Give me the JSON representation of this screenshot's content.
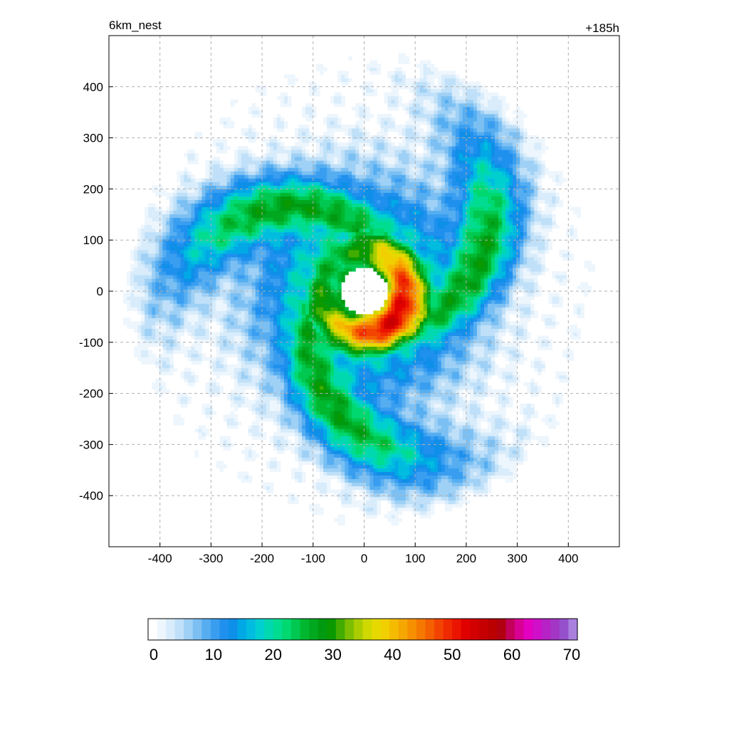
{
  "chart_data": {
    "type": "heatmap",
    "title_left": "6km_nest",
    "title_right": "+185h",
    "xlabel": "",
    "ylabel": "",
    "x_range": [
      -500,
      500
    ],
    "y_range": [
      -500,
      500
    ],
    "x_ticks": [
      -400,
      -300,
      -200,
      -100,
      0,
      100,
      200,
      300,
      400
    ],
    "y_ticks": [
      400,
      300,
      200,
      100,
      0,
      -100,
      -200,
      -300,
      -400
    ],
    "grid": "dashed",
    "field": {
      "description_source": "radar reflectivity style field (dBZ scale)",
      "eye_center": [
        0,
        0
      ],
      "eye_radius": 45,
      "max_value": 52,
      "spiral_bands": 3
    },
    "colorbar": {
      "range": [
        0,
        70
      ],
      "ticks": [
        0,
        10,
        20,
        30,
        40,
        50,
        60,
        70
      ],
      "colors": [
        "#ffffff",
        "#eef6fd",
        "#d8ecfb",
        "#bfe0f8",
        "#9fd0f5",
        "#7cc0f3",
        "#56aef1",
        "#3a9ef0",
        "#1f90ee",
        "#0e8fe8",
        "#00a9e6",
        "#00bde0",
        "#00cfd0",
        "#00d8b0",
        "#00dc90",
        "#00d870",
        "#00c850",
        "#00b830",
        "#00a820",
        "#009a10",
        "#0a9a00",
        "#42ad00",
        "#7cbf00",
        "#aacd00",
        "#cfd800",
        "#e5d900",
        "#f2cf00",
        "#f5bb00",
        "#f6a600",
        "#f69000",
        "#f57800",
        "#f45f00",
        "#f24400",
        "#f02a00",
        "#ea1400",
        "#e00000",
        "#d20000",
        "#c60000",
        "#bb0000",
        "#b10010",
        "#c3005a",
        "#d90094",
        "#e300c0",
        "#cf10c8",
        "#b722c6",
        "#a336c4",
        "#9650cc",
        "#a980de"
      ]
    }
  }
}
